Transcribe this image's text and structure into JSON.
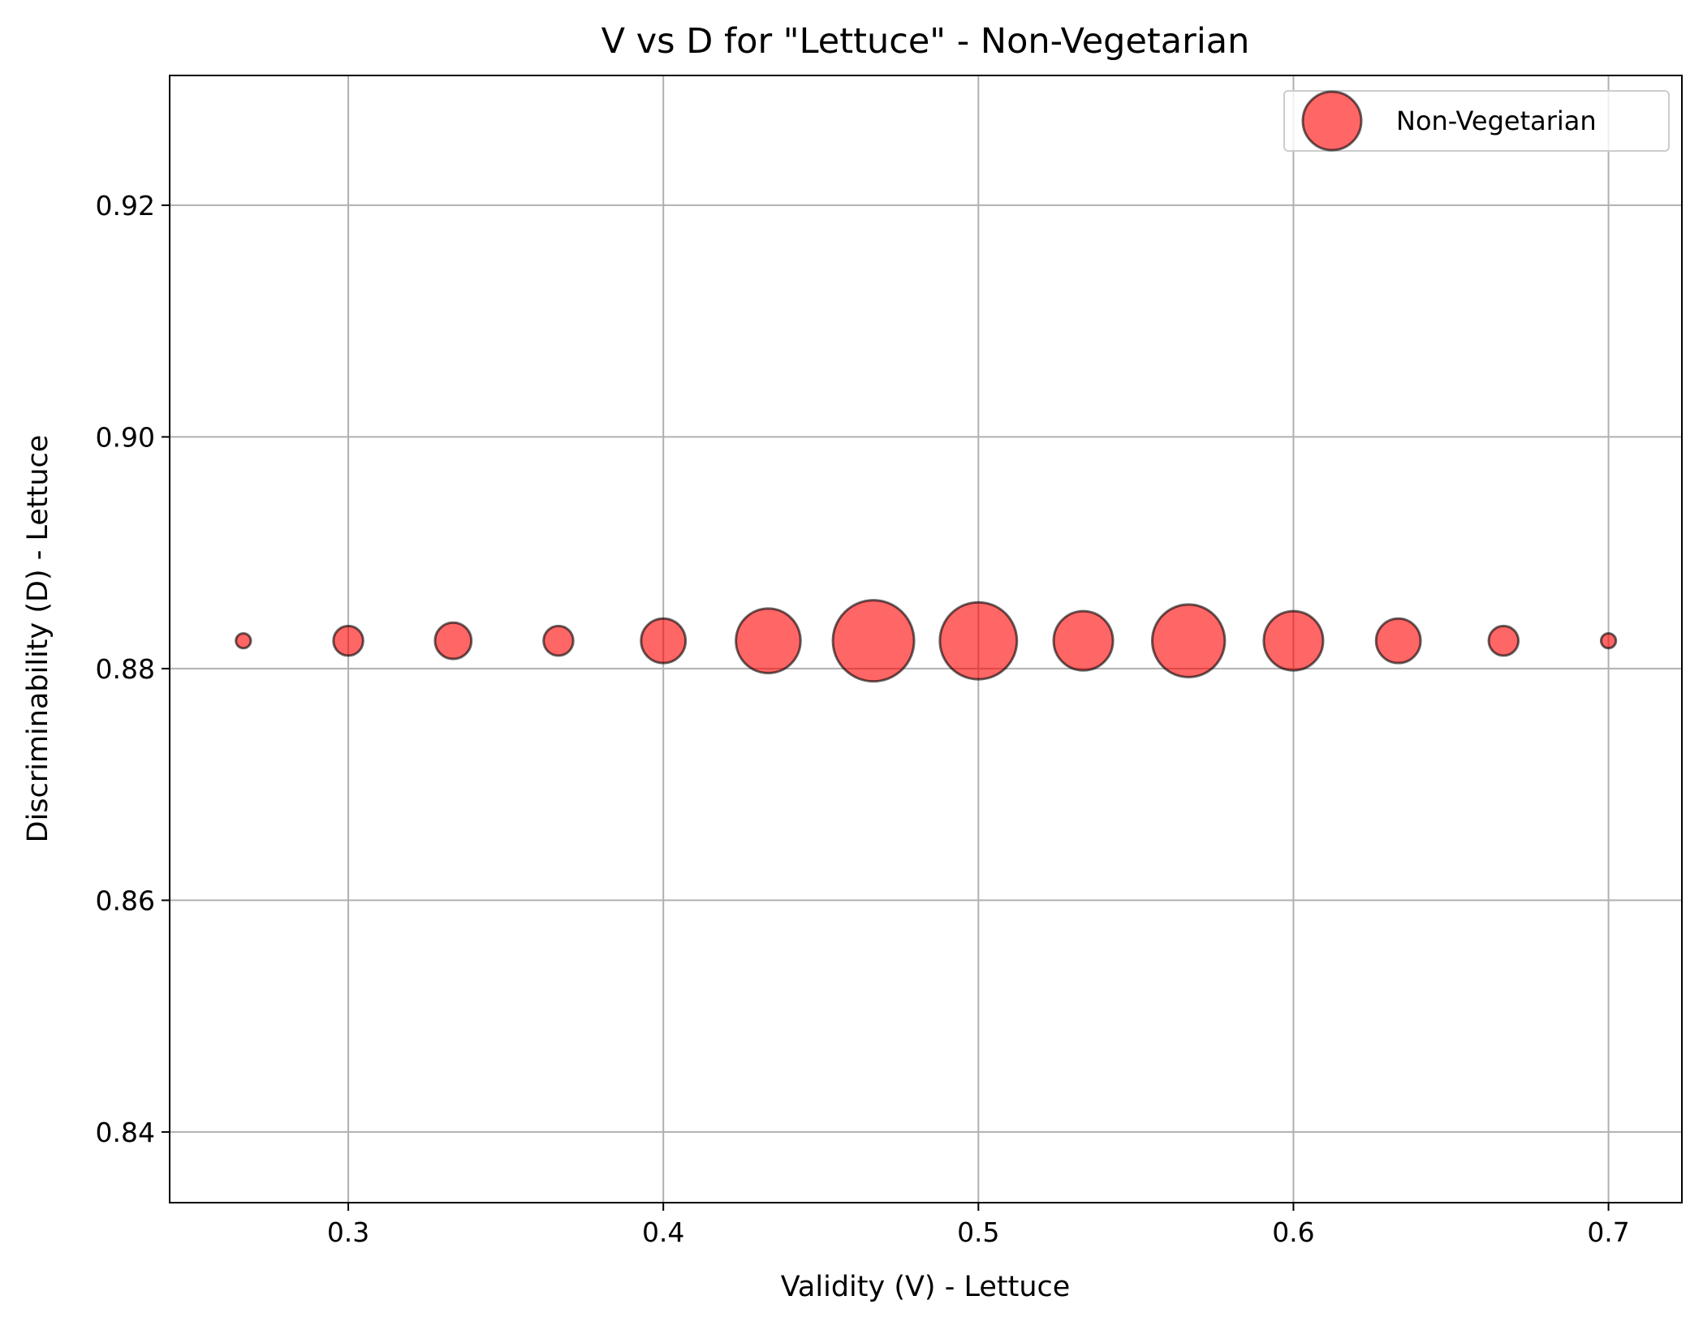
{
  "chart_data": {
    "type": "scatter",
    "title": "V vs D for \"Lettuce\" - Non-Vegetarian",
    "xlabel": "Validity (V) - Lettuce",
    "ylabel": "Discriminability (D) - Lettuce",
    "xlim": [
      0.2433,
      0.7233
    ],
    "ylim": [
      0.8339,
      0.9312
    ],
    "x_ticks": [
      0.3,
      0.4,
      0.5,
      0.6,
      0.7
    ],
    "x_tick_labels": [
      "0.3",
      "0.4",
      "0.5",
      "0.6",
      "0.7"
    ],
    "y_ticks": [
      0.84,
      0.86,
      0.88,
      0.9,
      0.92
    ],
    "y_tick_labels": [
      "0.84",
      "0.86",
      "0.88",
      "0.90",
      "0.92"
    ],
    "grid": true,
    "legend_position": "top-right",
    "series": [
      {
        "name": "Non-Vegetarian",
        "color": "#ff0000",
        "alpha": 0.6,
        "edge_color": "#000000",
        "points": [
          {
            "x": 0.2667,
            "y": 0.8824,
            "size": 1
          },
          {
            "x": 0.3,
            "y": 0.8824,
            "size": 4
          },
          {
            "x": 0.3333,
            "y": 0.8824,
            "size": 6
          },
          {
            "x": 0.3667,
            "y": 0.8824,
            "size": 4
          },
          {
            "x": 0.4,
            "y": 0.8824,
            "size": 9
          },
          {
            "x": 0.4333,
            "y": 0.8824,
            "size": 19
          },
          {
            "x": 0.4667,
            "y": 0.8824,
            "size": 30
          },
          {
            "x": 0.5,
            "y": 0.8824,
            "size": 27
          },
          {
            "x": 0.5333,
            "y": 0.8824,
            "size": 16
          },
          {
            "x": 0.5667,
            "y": 0.8824,
            "size": 24
          },
          {
            "x": 0.6,
            "y": 0.8824,
            "size": 16
          },
          {
            "x": 0.6333,
            "y": 0.8824,
            "size": 9
          },
          {
            "x": 0.6667,
            "y": 0.8824,
            "size": 4
          },
          {
            "x": 0.7,
            "y": 0.8824,
            "size": 1
          }
        ]
      }
    ]
  }
}
